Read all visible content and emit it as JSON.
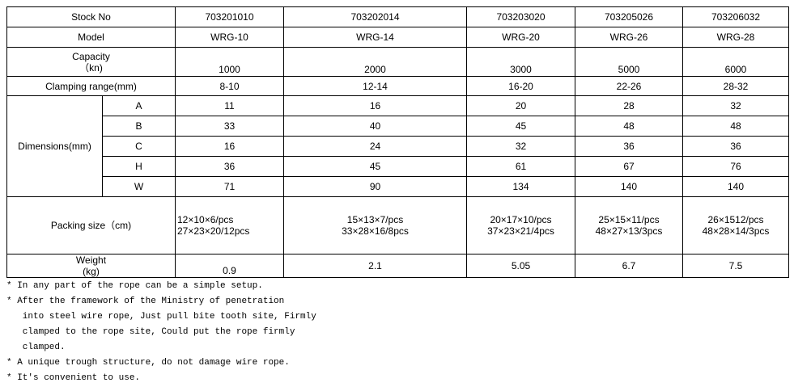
{
  "table": {
    "stock_label": "Stock No",
    "stock": [
      "703201010",
      "703202014",
      "703203020",
      "703205026",
      "703206032"
    ],
    "model_label": "Model",
    "model": [
      "WRG-10",
      "WRG-14",
      "WRG-20",
      "WRG-26",
      "WRG-28"
    ],
    "capacity_label": "Capacity",
    "capacity_unit": "（kn)",
    "capacity": [
      "1000",
      "2000",
      "3000",
      "5000",
      "6000"
    ],
    "clamp_label": "Clamping range(mm)",
    "clamp": [
      "8-10",
      "12-14",
      "16-20",
      "22-26",
      "28-32"
    ],
    "dim_label": "Dimensions(mm)",
    "dims": [
      {
        "k": "A",
        "v": [
          "11",
          "16",
          "20",
          "28",
          "32"
        ]
      },
      {
        "k": "B",
        "v": [
          "33",
          "40",
          "45",
          "48",
          "48"
        ]
      },
      {
        "k": "C",
        "v": [
          "16",
          "24",
          "32",
          "36",
          "36"
        ]
      },
      {
        "k": "H",
        "v": [
          "36",
          "45",
          "61",
          "67",
          "76"
        ]
      },
      {
        "k": "W",
        "v": [
          "71",
          "90",
          "134",
          "140",
          "140"
        ]
      }
    ],
    "pack_label": "Packing size（cm)",
    "pack": [
      [
        "12×10×6/pcs",
        "27×23×20/12pcs"
      ],
      [
        "15×13×7/pcs",
        "33×28×16/8pcs"
      ],
      [
        "20×17×10/pcs",
        "37×23×21/4pcs"
      ],
      [
        "25×15×11/pcs",
        "48×27×13/3pcs"
      ],
      [
        "26×1512/pcs",
        "48×28×14/3pcs"
      ]
    ],
    "weight_label": "Weight",
    "weight_unit": "(kg)",
    "weight": [
      "0.9",
      "2.1",
      "5.05",
      "6.7",
      "7.5"
    ]
  },
  "notes": [
    "* In any part of the rope can be a simple setup.",
    "* After the framework of the Ministry of penetration",
    "   into steel wire rope, Just pull bite tooth site, Firmly",
    "   clamped to the rope site, Could put the rope firmly",
    "   clamped.",
    "* A unique trough structure, do not damage wire rope.",
    "* It's convenient to use."
  ]
}
